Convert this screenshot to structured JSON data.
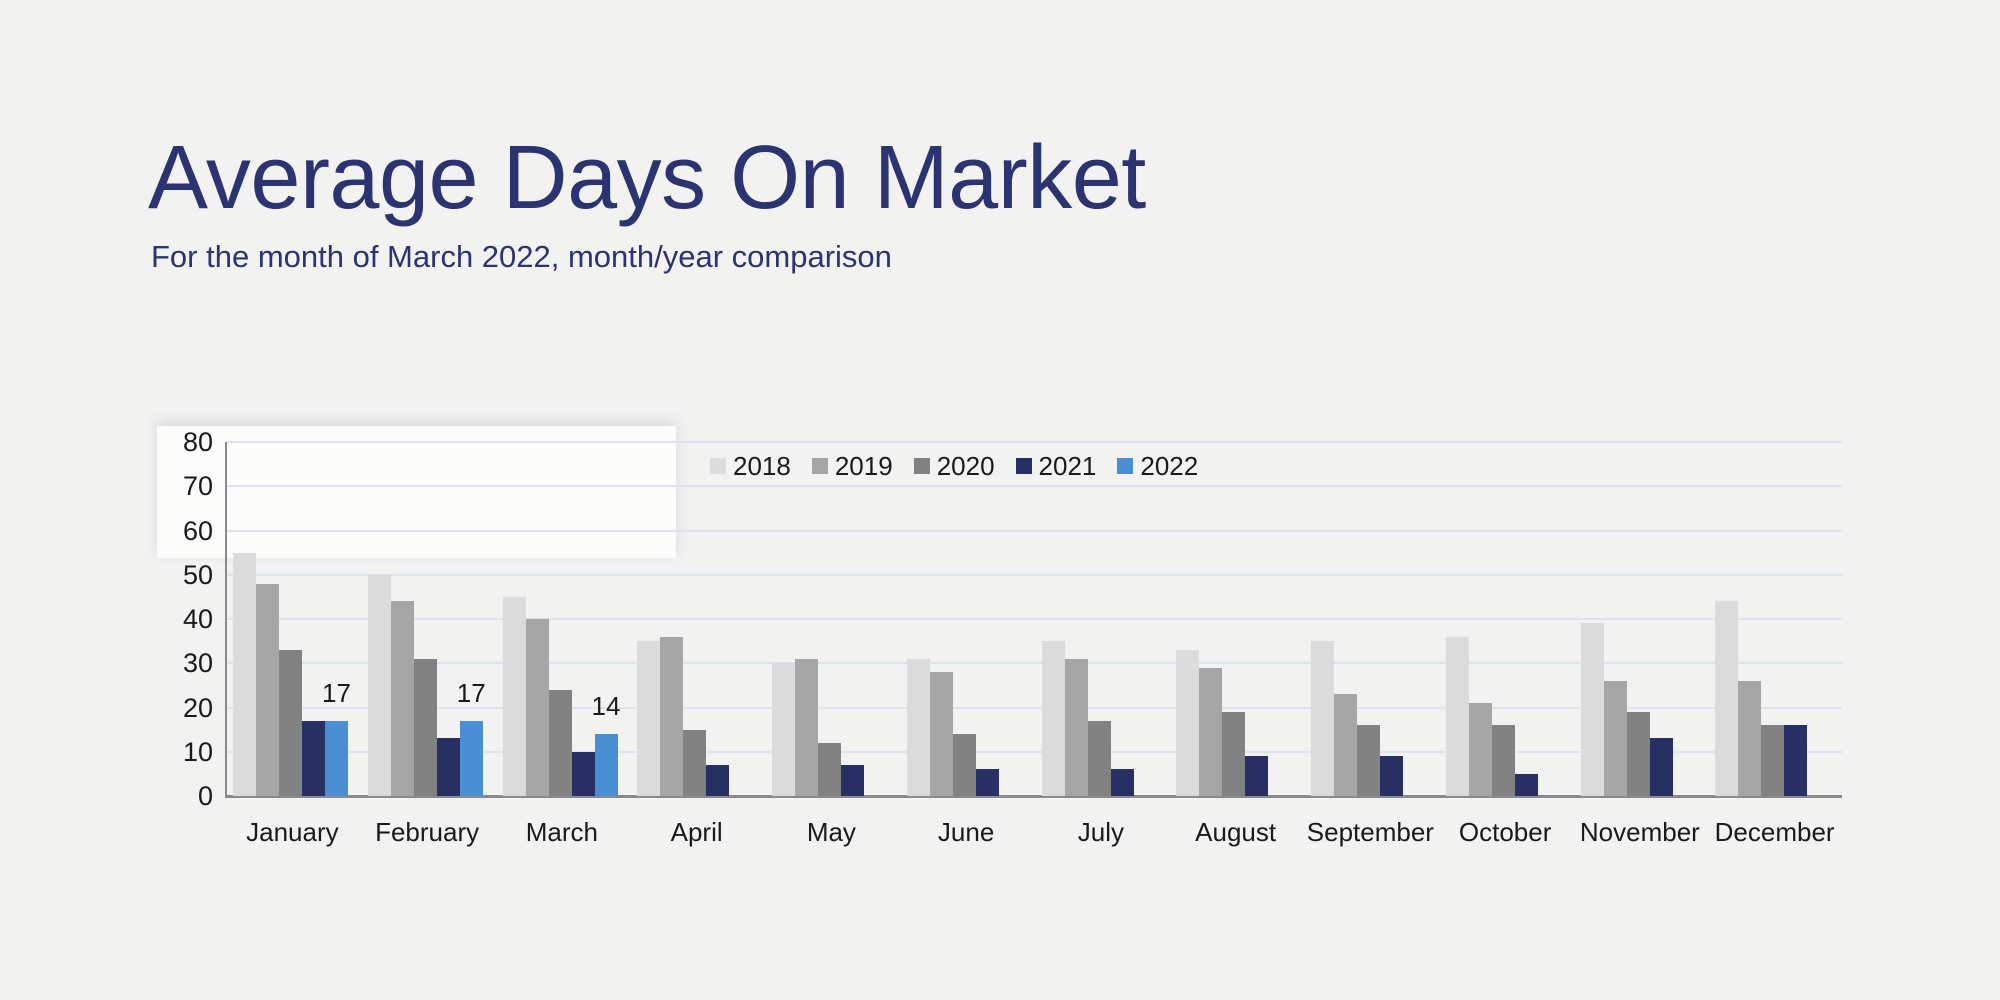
{
  "page": {
    "background_color": "#f2f2f1"
  },
  "header": {
    "title": "Average Days On Market",
    "subtitle": "For the month of March 2022, month/year comparison",
    "accent_color": "#2b3470"
  },
  "chart_data": {
    "type": "bar",
    "title": "Average Days On Market",
    "subtitle": "For the month of March 2022, month/year comparison",
    "categories": [
      "January",
      "February",
      "March",
      "April",
      "May",
      "June",
      "July",
      "August",
      "September",
      "October",
      "November",
      "December"
    ],
    "series": [
      {
        "name": "2018",
        "color": "#dbdbdb",
        "values": [
          55,
          50,
          45,
          35,
          30,
          31,
          35,
          33,
          35,
          36,
          39,
          44
        ],
        "show_value_labels": false
      },
      {
        "name": "2019",
        "color": "#a6a6a6",
        "values": [
          48,
          44,
          40,
          36,
          31,
          28,
          31,
          29,
          23,
          21,
          26,
          26
        ],
        "show_value_labels": false
      },
      {
        "name": "2020",
        "color": "#828282",
        "values": [
          33,
          31,
          24,
          15,
          12,
          14,
          17,
          19,
          16,
          16,
          19,
          16
        ],
        "show_value_labels": false
      },
      {
        "name": "2021",
        "color": "#272f63",
        "values": [
          17,
          13,
          10,
          7,
          7,
          6,
          6,
          9,
          9,
          5,
          13,
          16
        ],
        "show_value_labels": false
      },
      {
        "name": "2022",
        "color": "#4a8fd3",
        "values": [
          17,
          17,
          14,
          null,
          null,
          null,
          null,
          null,
          null,
          null,
          null,
          null
        ],
        "show_value_labels": true
      }
    ],
    "visible_value_labels": [
      "17",
      "17",
      "14"
    ],
    "xlabel": "",
    "ylabel": "",
    "ylim": [
      0,
      80
    ],
    "ytick_step": 10,
    "ytick_labels": [
      "0",
      "10",
      "20",
      "30",
      "40",
      "50",
      "60",
      "70",
      "80"
    ],
    "grid": true,
    "gridline_color": "#dce2ee",
    "axis_color": "#8a8a8a",
    "tick_label_color": "#1a1a1a",
    "value_label_color": "#1a1a1a",
    "legend_position": "top-center",
    "legend_entries": [
      "2018",
      "2019",
      "2020",
      "2021",
      "2022"
    ]
  }
}
